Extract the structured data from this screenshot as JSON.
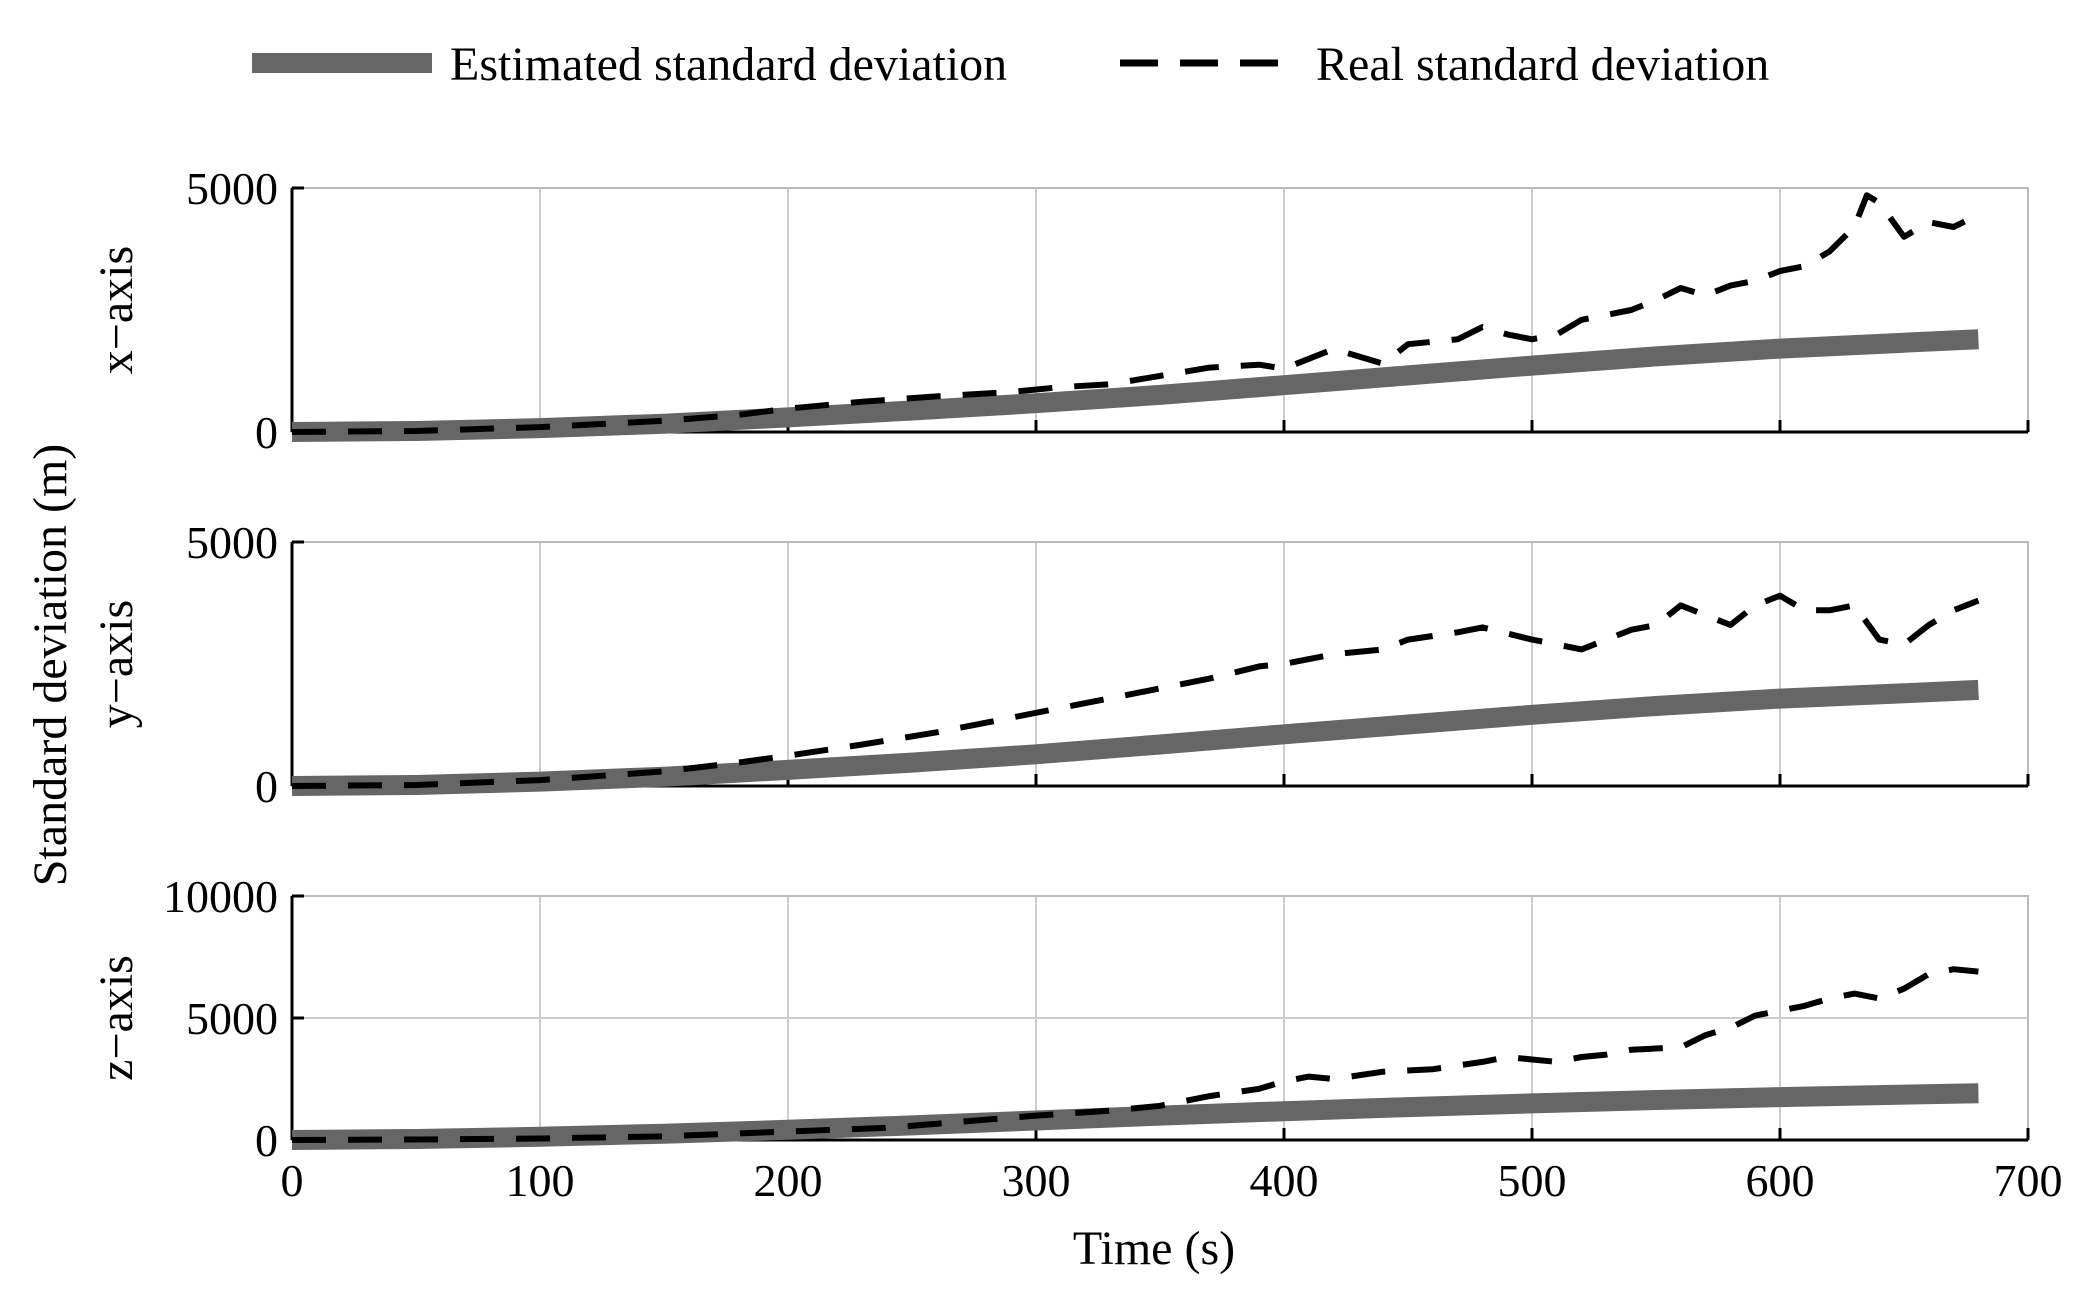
{
  "chart_data": {
    "type": "line",
    "title": "",
    "legend": {
      "placement": "top",
      "entries": [
        {
          "name": "Estimated standard deviation",
          "style": "solid-thick",
          "color": "#666666"
        },
        {
          "name": "Real standard deviation",
          "style": "dashed",
          "color": "#000000"
        }
      ]
    },
    "ylabel": "Standard deviation (m)",
    "xlabel": "Time (s)",
    "xlim": [
      0,
      700
    ],
    "xticks": [
      "0",
      "100",
      "200",
      "300",
      "400",
      "500",
      "600",
      "700"
    ],
    "grid": true,
    "panels": [
      {
        "label": "x−axis",
        "ylim": [
          0,
          5000
        ],
        "yticks": [
          "0",
          "5000"
        ],
        "ytick_values": [
          0,
          5000
        ],
        "series": [
          {
            "name": "Estimated standard deviation",
            "x": [
              0,
              50,
              100,
              150,
              200,
              250,
              300,
              350,
              400,
              450,
              500,
              550,
              600,
              650,
              680
            ],
            "values": [
              0,
              20,
              80,
              170,
              300,
              440,
              590,
              760,
              960,
              1160,
              1360,
              1550,
              1710,
              1830,
              1900
            ]
          },
          {
            "name": "Real standard deviation",
            "x": [
              0,
              50,
              100,
              150,
              180,
              200,
              230,
              260,
              290,
              310,
              330,
              350,
              370,
              390,
              400,
              410,
              420,
              440,
              450,
              470,
              480,
              490,
              500,
              510,
              520,
              530,
              540,
              550,
              560,
              570,
              580,
              590,
              600,
              610,
              620,
              630,
              635,
              640,
              650,
              660,
              670,
              680
            ],
            "values": [
              0,
              20,
              100,
              230,
              350,
              480,
              620,
              730,
              820,
              920,
              980,
              1150,
              1320,
              1380,
              1300,
              1500,
              1700,
              1400,
              1800,
              1900,
              2150,
              2000,
              1900,
              2000,
              2300,
              2400,
              2500,
              2700,
              2950,
              2800,
              3000,
              3100,
              3300,
              3400,
              3700,
              4200,
              4850,
              4700,
              4000,
              4300,
              4200,
              4450
            ]
          }
        ]
      },
      {
        "label": "y−axis",
        "ylim": [
          0,
          5000
        ],
        "yticks": [
          "0",
          "5000"
        ],
        "ytick_values": [
          0,
          5000
        ],
        "series": [
          {
            "name": "Estimated standard deviation",
            "x": [
              0,
              50,
              100,
              150,
              200,
              250,
              300,
              350,
              400,
              450,
              500,
              550,
              600,
              650,
              680
            ],
            "values": [
              0,
              20,
              90,
              190,
              330,
              480,
              650,
              850,
              1060,
              1260,
              1460,
              1640,
              1790,
              1900,
              1970
            ]
          },
          {
            "name": "Real standard deviation",
            "x": [
              0,
              50,
              100,
              150,
              180,
              200,
              230,
              260,
              290,
              310,
              330,
              350,
              370,
              390,
              400,
              420,
              440,
              450,
              470,
              480,
              500,
              520,
              530,
              540,
              550,
              560,
              570,
              580,
              590,
              600,
              610,
              620,
              630,
              640,
              650,
              660,
              670,
              680
            ],
            "values": [
              0,
              20,
              120,
              300,
              480,
              620,
              850,
              1100,
              1400,
              1600,
              1800,
              2000,
              2200,
              2450,
              2500,
              2700,
              2800,
              3000,
              3150,
              3250,
              3000,
              2800,
              3000,
              3200,
              3300,
              3700,
              3500,
              3300,
              3700,
              3900,
              3600,
              3600,
              3700,
              3000,
              2900,
              3300,
              3600,
              3800
            ]
          }
        ]
      },
      {
        "label": "z−axis",
        "ylim": [
          0,
          10000
        ],
        "yticks": [
          "0",
          "5000",
          "10000"
        ],
        "ytick_values": [
          0,
          5000,
          10000
        ],
        "series": [
          {
            "name": "Estimated standard deviation",
            "x": [
              0,
              50,
              100,
              150,
              200,
              250,
              300,
              350,
              400,
              450,
              500,
              550,
              600,
              650,
              680
            ],
            "values": [
              0,
              40,
              130,
              260,
              420,
              600,
              800,
              1000,
              1180,
              1350,
              1500,
              1640,
              1760,
              1860,
              1920
            ]
          },
          {
            "name": "Real standard deviation",
            "x": [
              0,
              50,
              100,
              150,
              200,
              240,
              270,
              300,
              330,
              350,
              370,
              390,
              400,
              410,
              420,
              440,
              460,
              480,
              490,
              500,
              510,
              520,
              530,
              540,
              560,
              570,
              580,
              590,
              600,
              610,
              620,
              630,
              640,
              650,
              660,
              670,
              680
            ],
            "values": [
              0,
              20,
              60,
              150,
              350,
              500,
              750,
              1000,
              1200,
              1400,
              1800,
              2100,
              2400,
              2600,
              2500,
              2800,
              2900,
              3200,
              3400,
              3300,
              3200,
              3400,
              3500,
              3700,
              3800,
              4300,
              4600,
              5100,
              5300,
              5500,
              5800,
              6000,
              5800,
              6200,
              6800,
              7000,
              6900
            ]
          }
        ]
      }
    ]
  }
}
